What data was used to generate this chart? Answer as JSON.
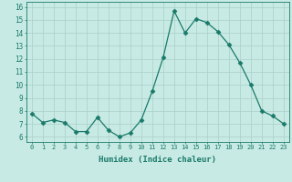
{
  "x": [
    0,
    1,
    2,
    3,
    4,
    5,
    6,
    7,
    8,
    9,
    10,
    11,
    12,
    13,
    14,
    15,
    16,
    17,
    18,
    19,
    20,
    21,
    22,
    23
  ],
  "y": [
    7.8,
    7.1,
    7.3,
    7.1,
    6.4,
    6.4,
    7.5,
    6.5,
    6.0,
    6.3,
    7.3,
    9.5,
    12.1,
    15.7,
    14.0,
    15.1,
    14.8,
    14.1,
    13.1,
    11.7,
    10.0,
    8.0,
    7.6,
    7.0
  ],
  "line_color": "#1a7a6a",
  "marker": "D",
  "marker_size": 2.5,
  "bg_color": "#c8eae4",
  "grid_color": "#a8cfc8",
  "xlabel": "Humidex (Indice chaleur)",
  "ylabel_ticks": [
    6,
    7,
    8,
    9,
    10,
    11,
    12,
    13,
    14,
    15,
    16
  ],
  "xlim": [
    -0.5,
    23.5
  ],
  "ylim": [
    5.6,
    16.4
  ],
  "xtick_fontsize": 5.0,
  "ytick_fontsize": 5.5,
  "xlabel_fontsize": 6.5
}
